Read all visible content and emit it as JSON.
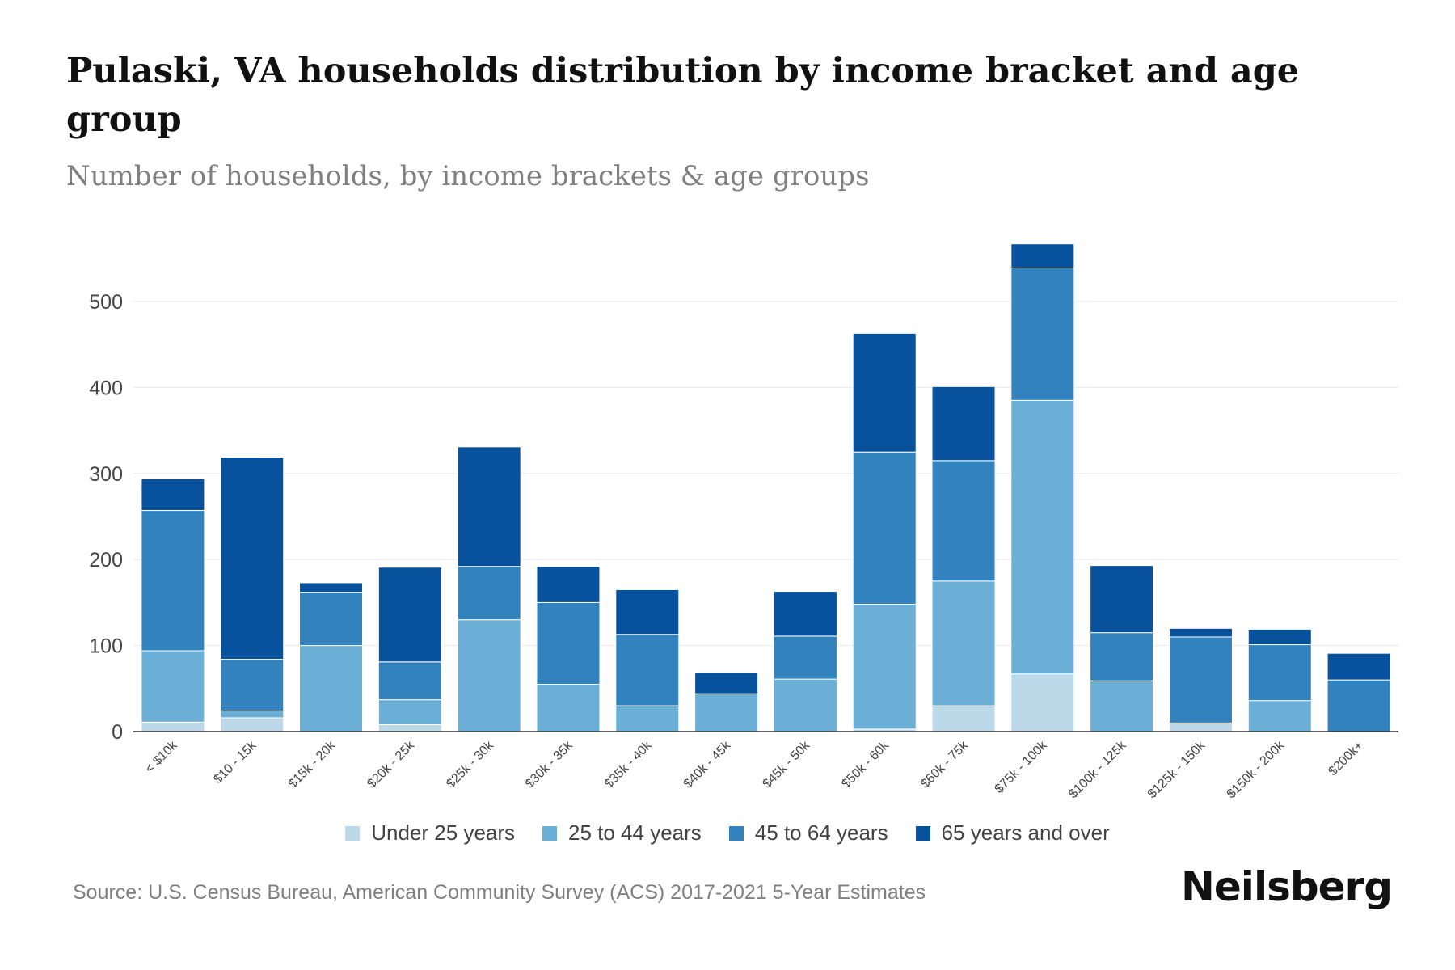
{
  "header": {
    "title": "Pulaski, VA households distribution by income bracket and age group",
    "subtitle": "Number of households, by income brackets & age groups"
  },
  "footer": {
    "source": "Source: U.S. Census Bureau, American Community Survey (ACS) 2017-2021 5-Year Estimates",
    "brand": "Neilsberg"
  },
  "colors": {
    "under25": "#bcd9e9",
    "age25to44": "#6baed6",
    "age45to64": "#3182bd",
    "age65plus": "#08519c",
    "grid": "#e8e8e8",
    "axis": "#333333"
  },
  "chart_data": {
    "type": "bar",
    "stacked": true,
    "title": "Pulaski, VA households distribution by income bracket and age group",
    "subtitle": "Number of households, by income brackets & age groups",
    "xlabel": "",
    "ylabel": "",
    "ylim": [
      0,
      580
    ],
    "yticks": [
      0,
      100,
      200,
      300,
      400,
      500
    ],
    "grid": true,
    "legend_position": "bottom",
    "categories": [
      "< $10k",
      "$10 - 15k",
      "$15k - 20k",
      "$20k - 25k",
      "$25k - 30k",
      "$30k - 35k",
      "$35k - 40k",
      "$40k - 45k",
      "$45k - 50k",
      "$50k - 60k",
      "$60k - 75k",
      "$75k - 100k",
      "$100k - 125k",
      "$125k - 150k",
      "$150k - 200k",
      "$200k+"
    ],
    "series": [
      {
        "name": "Under 25 years",
        "color": "#bcd9e9",
        "values": [
          11,
          16,
          0,
          8,
          0,
          0,
          0,
          0,
          0,
          3,
          30,
          67,
          0,
          10,
          0,
          0
        ]
      },
      {
        "name": "25 to 44 years",
        "color": "#6baed6",
        "values": [
          83,
          8,
          100,
          29,
          130,
          55,
          30,
          44,
          61,
          145,
          145,
          318,
          59,
          0,
          36,
          0
        ]
      },
      {
        "name": "45 to 64 years",
        "color": "#3182bd",
        "values": [
          163,
          60,
          62,
          44,
          62,
          95,
          83,
          0,
          50,
          177,
          140,
          154,
          56,
          100,
          65,
          60
        ]
      },
      {
        "name": "65 years and over",
        "color": "#08519c",
        "values": [
          37,
          235,
          11,
          110,
          139,
          42,
          52,
          25,
          52,
          138,
          86,
          28,
          78,
          10,
          18,
          31
        ]
      }
    ]
  }
}
